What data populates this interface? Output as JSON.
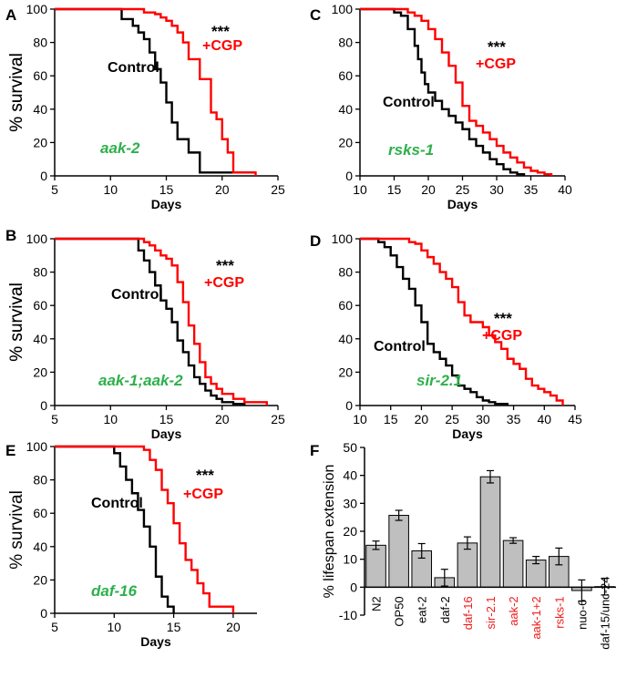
{
  "colors": {
    "control": "#000000",
    "cgp": "#ff0000",
    "green_label": "#2db04b",
    "bar_fill": "#bfbfbf",
    "red_label": "#ee1c1c"
  },
  "chart_data": [
    {
      "panel": "A",
      "type": "line",
      "title": "",
      "xlabel": "Days",
      "ylabel": "% survival",
      "xlim": [
        5,
        25
      ],
      "ylim": [
        0,
        100
      ],
      "xticks": [
        5,
        10,
        15,
        20,
        25
      ],
      "yticks": [
        0,
        20,
        40,
        60,
        80,
        100
      ],
      "strain_label": "aak-2",
      "significance": "***",
      "annotations": {
        "control": "Control",
        "cgp": "+CGP"
      },
      "series": [
        {
          "name": "Control",
          "x": [
            5,
            10.5,
            11,
            12,
            12.5,
            13,
            13.5,
            14,
            14.5,
            15,
            15.5,
            16,
            16.5,
            17,
            18,
            18.5,
            21,
            23
          ],
          "values": [
            100,
            100,
            94,
            90,
            86,
            82,
            74,
            64,
            56,
            44,
            32,
            22,
            22,
            14,
            2,
            2,
            2,
            2
          ]
        },
        {
          "name": "+CGP",
          "x": [
            5,
            12,
            13,
            14,
            14.5,
            15,
            15.5,
            16,
            16.5,
            17,
            18,
            19,
            19.5,
            20,
            20.5,
            21,
            23
          ],
          "values": [
            100,
            100,
            98,
            97,
            95,
            93,
            90,
            86,
            80,
            70,
            58,
            38,
            34,
            22,
            14,
            2,
            0
          ]
        }
      ]
    },
    {
      "panel": "B",
      "type": "line",
      "title": "",
      "xlabel": "Days",
      "ylabel": "% survival",
      "xlim": [
        5,
        25
      ],
      "ylim": [
        0,
        100
      ],
      "xticks": [
        5,
        10,
        15,
        20,
        25
      ],
      "yticks": [
        0,
        20,
        40,
        60,
        80,
        100
      ],
      "strain_label": "aak-1;aak-2",
      "significance": "***",
      "annotations": {
        "control": "Control",
        "cgp": "+CGP"
      },
      "series": [
        {
          "name": "Control",
          "x": [
            5,
            12,
            12.5,
            13,
            13.5,
            14,
            14.5,
            15,
            15.5,
            16,
            16.5,
            17,
            17.5,
            18,
            18.5,
            19,
            19.5,
            20,
            21,
            22
          ],
          "values": [
            100,
            100,
            93,
            87,
            80,
            72,
            63,
            58,
            50,
            39,
            32,
            24,
            17,
            13,
            9,
            6,
            4,
            2,
            1,
            0
          ]
        },
        {
          "name": "+CGP",
          "x": [
            5,
            12,
            13,
            13.5,
            14,
            14.5,
            15,
            15.5,
            16,
            16.5,
            17,
            17.5,
            18,
            18.5,
            19,
            19.5,
            20,
            21,
            22,
            24
          ],
          "values": [
            100,
            100,
            98,
            96,
            93,
            90,
            88,
            84,
            74,
            62,
            48,
            37,
            26,
            17,
            13,
            10,
            7,
            4,
            2,
            0
          ]
        }
      ]
    },
    {
      "panel": "C",
      "type": "line",
      "title": "",
      "xlabel": "Days",
      "ylabel": "% survival",
      "xlim": [
        10,
        40
      ],
      "ylim": [
        0,
        100
      ],
      "xticks": [
        10,
        15,
        20,
        25,
        30,
        35,
        40
      ],
      "yticks": [
        0,
        20,
        40,
        60,
        80,
        100
      ],
      "strain_label": "rsks-1",
      "significance": "***",
      "annotations": {
        "control": "Control",
        "cgp": "+CGP"
      },
      "series": [
        {
          "name": "Control",
          "x": [
            10,
            14,
            15,
            16,
            17,
            18,
            18.5,
            19,
            19.5,
            20,
            21,
            22,
            23,
            24,
            25,
            26,
            27,
            28,
            29,
            30,
            31,
            32,
            33,
            34
          ],
          "values": [
            100,
            100,
            98,
            96,
            88,
            78,
            70,
            62,
            55,
            50,
            45,
            40,
            36,
            32,
            28,
            22,
            18,
            14,
            10,
            7,
            4,
            2,
            1,
            0
          ]
        },
        {
          "name": "+CGP",
          "x": [
            10,
            15,
            17,
            18,
            19,
            20,
            21,
            22,
            23,
            24,
            25,
            26,
            27,
            28,
            29,
            30,
            31,
            32,
            33,
            34,
            35,
            36,
            37,
            38
          ],
          "values": [
            100,
            100,
            98,
            96,
            93,
            88,
            82,
            74,
            66,
            56,
            42,
            33,
            30,
            26,
            22,
            18,
            14,
            11,
            8,
            5,
            3,
            2,
            1,
            0
          ]
        }
      ]
    },
    {
      "panel": "D",
      "type": "line",
      "title": "",
      "xlabel": "Days",
      "ylabel": "% survival",
      "xlim": [
        10,
        45
      ],
      "ylim": [
        0,
        100
      ],
      "xticks": [
        10,
        15,
        20,
        25,
        30,
        35,
        40,
        45
      ],
      "yticks": [
        0,
        20,
        40,
        60,
        80,
        100
      ],
      "strain_label": "sir-2.1",
      "significance": "***",
      "annotations": {
        "control": "Control",
        "cgp": "+CGP"
      },
      "series": [
        {
          "name": "Control",
          "x": [
            10,
            12,
            13,
            14,
            15,
            16,
            17,
            18,
            19,
            20,
            21,
            22,
            23,
            24,
            25,
            26,
            27,
            28,
            29,
            30,
            31,
            32,
            33,
            34
          ],
          "values": [
            100,
            100,
            98,
            95,
            90,
            83,
            76,
            70,
            60,
            50,
            37,
            32,
            28,
            24,
            18,
            12,
            10,
            8,
            5,
            3,
            2,
            1,
            1,
            0
          ]
        },
        {
          "name": "+CGP",
          "x": [
            10,
            17,
            18,
            19,
            20,
            21,
            22,
            23,
            24,
            25,
            26,
            27,
            28,
            29,
            30,
            31,
            32,
            33,
            34,
            35,
            36,
            37,
            38,
            39,
            40,
            41,
            42,
            43
          ],
          "values": [
            100,
            100,
            98,
            97,
            93,
            89,
            85,
            80,
            76,
            71,
            62,
            54,
            50,
            50,
            47,
            42,
            38,
            34,
            28,
            25,
            22,
            16,
            12,
            10,
            8,
            6,
            3,
            0
          ]
        }
      ]
    },
    {
      "panel": "E",
      "type": "line",
      "title": "",
      "xlabel": "Days",
      "ylabel": "% survival",
      "xlim": [
        5,
        22
      ],
      "ylim": [
        0,
        100
      ],
      "xticks": [
        5,
        10,
        15,
        20
      ],
      "yticks": [
        0,
        20,
        40,
        60,
        80,
        100
      ],
      "strain_label": "daf-16",
      "significance": "***",
      "annotations": {
        "control": "Control",
        "cgp": "+CGP"
      },
      "series": [
        {
          "name": "Control",
          "x": [
            5,
            9,
            10,
            10.5,
            11,
            11.5,
            12,
            12.5,
            13,
            13.5,
            14,
            14.5,
            15
          ],
          "values": [
            100,
            100,
            96,
            88,
            80,
            72,
            62,
            52,
            40,
            22,
            10,
            4,
            0
          ]
        },
        {
          "name": "+CGP",
          "x": [
            5,
            12,
            12.5,
            13,
            13.5,
            14,
            14.5,
            15,
            15.5,
            16,
            16.5,
            17,
            17.5,
            18,
            19,
            20
          ],
          "values": [
            100,
            100,
            98,
            92,
            86,
            74,
            66,
            54,
            42,
            32,
            26,
            18,
            12,
            4,
            4,
            0
          ]
        }
      ]
    },
    {
      "panel": "F",
      "type": "bar",
      "title": "",
      "xlabel": "",
      "ylabel": "% lifespan extension",
      "ylim": [
        -10,
        50
      ],
      "yticks": [
        -10,
        0,
        10,
        20,
        30,
        40,
        50
      ],
      "categories": [
        "N2",
        "OP50",
        "eat-2",
        "daf-2",
        "daf-16",
        "sir-2.1",
        "aak-2",
        "aak-1+2",
        "rsks-1",
        "nuo-6",
        "daf-15/unc-24"
      ],
      "values": [
        15,
        25.7,
        13,
        3.4,
        15.8,
        39.5,
        16.7,
        9.7,
        11,
        -1.2,
        0.2
      ],
      "errors": [
        1.5,
        1.8,
        2.6,
        3,
        2.2,
        2.2,
        1,
        1.3,
        3,
        3.8,
        3
      ],
      "category_colors": [
        "black",
        "black",
        "black",
        "black",
        "red",
        "red",
        "red",
        "red",
        "red",
        "black",
        "black"
      ]
    }
  ]
}
